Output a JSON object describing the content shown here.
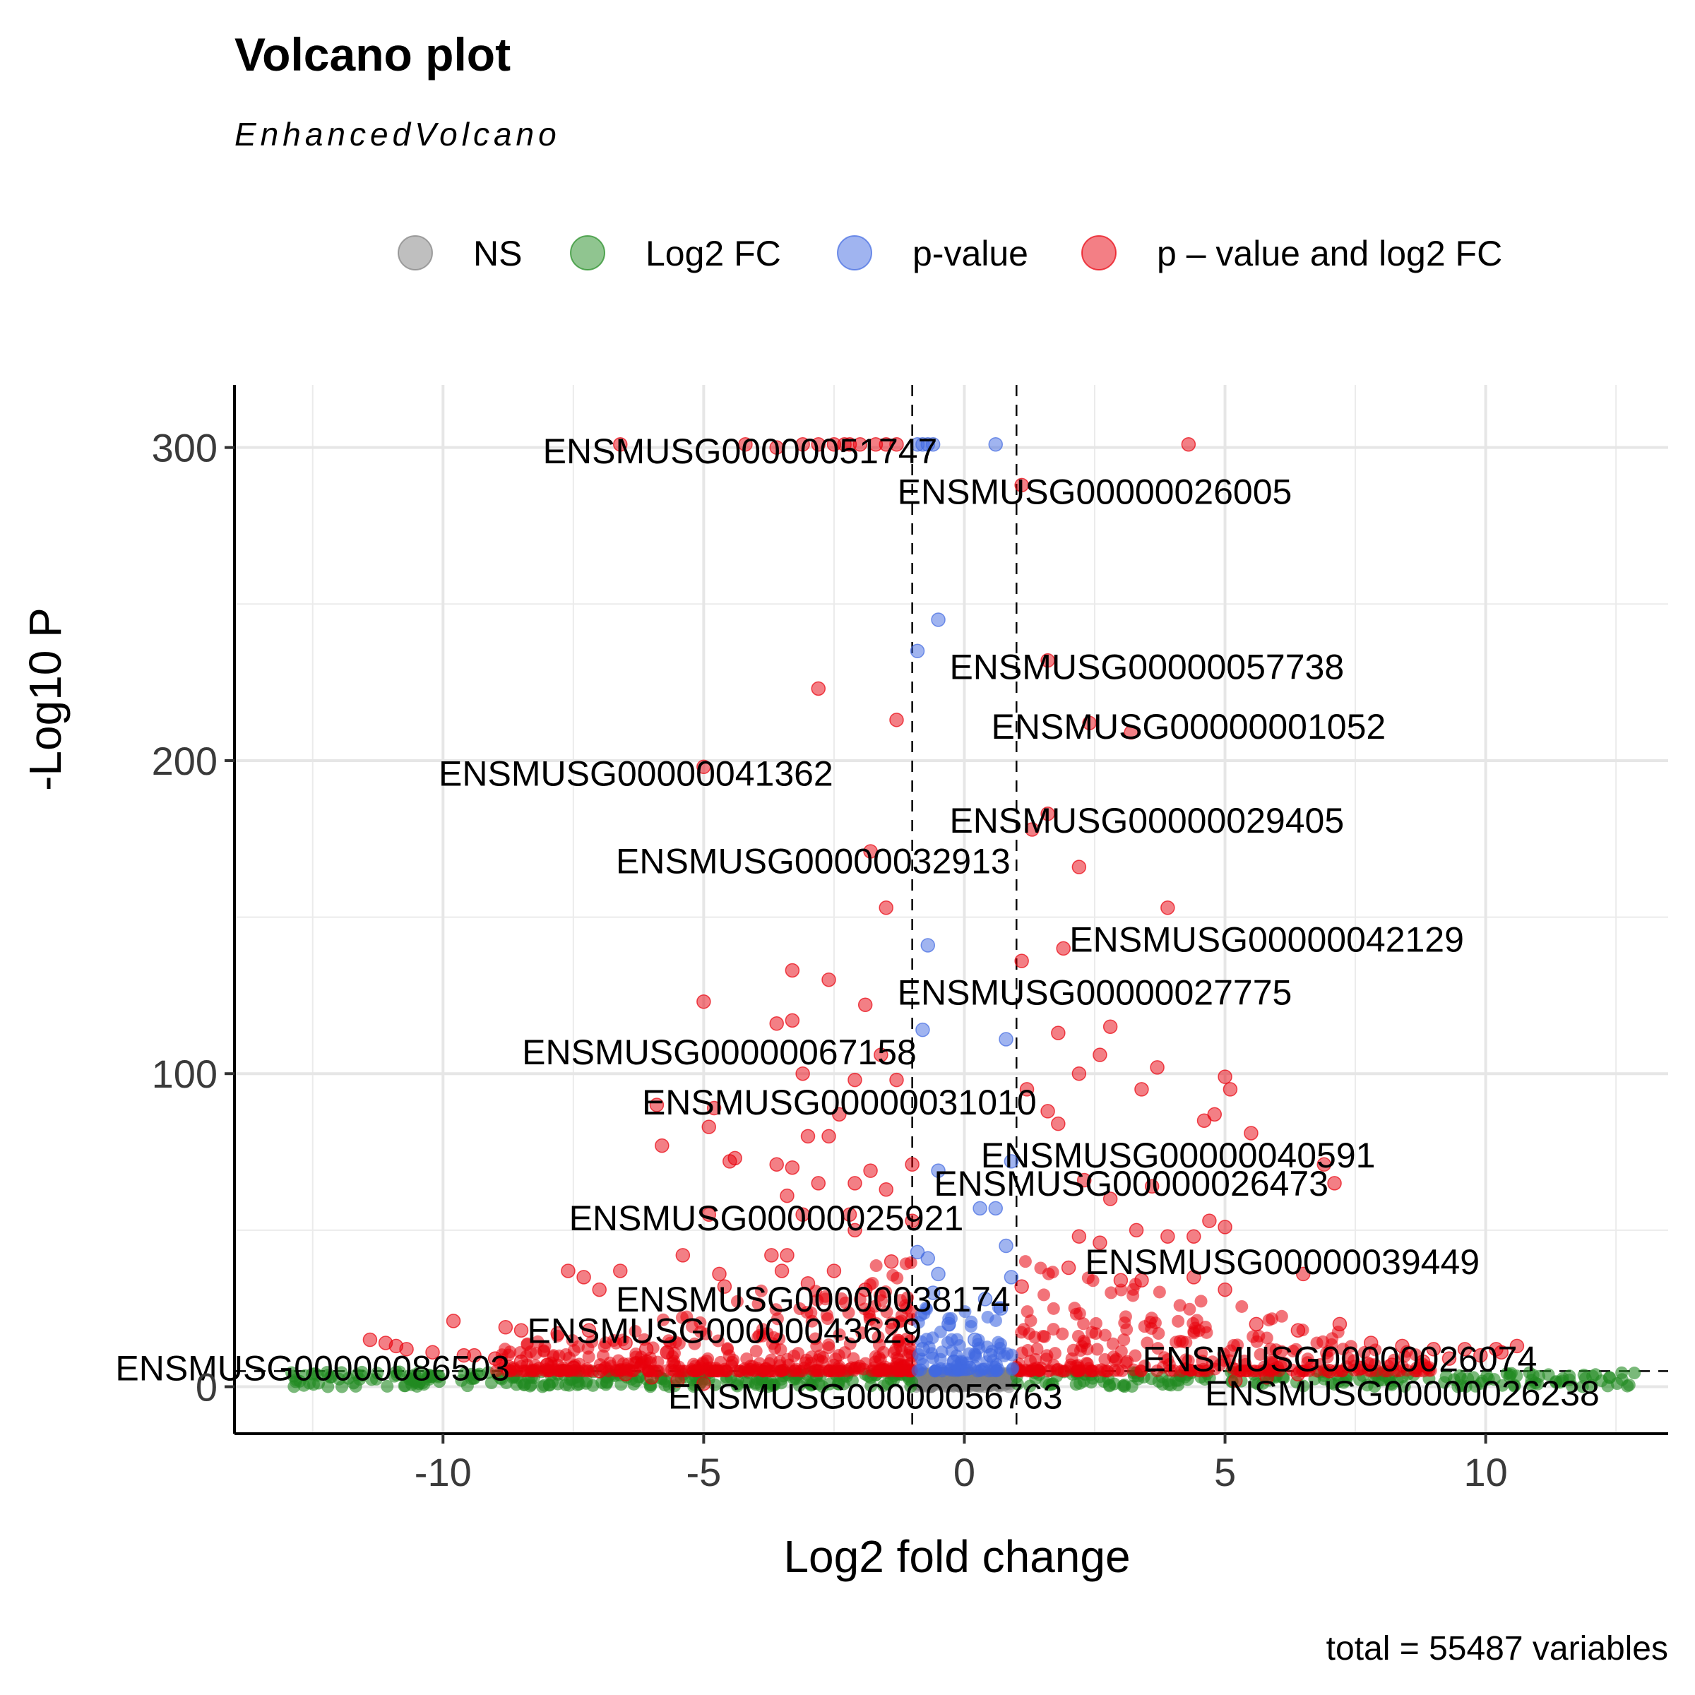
{
  "chart_data": {
    "type": "scatter",
    "title": "Volcano plot",
    "subtitle": "EnhancedVolcano",
    "caption": "total = 55487 variables",
    "xlabel": "Log2 fold change",
    "ylabel": "-Log10 P",
    "xlim": [
      -14,
      13.5
    ],
    "ylim": [
      -15,
      320
    ],
    "x_ticks": [
      -10,
      -5,
      0,
      5,
      10
    ],
    "x_tick_labels": [
      "-10",
      "-5",
      "0",
      "5",
      "10"
    ],
    "y_ticks": [
      0,
      100,
      200,
      300
    ],
    "y_tick_labels": [
      "0",
      "100",
      "200",
      "300"
    ],
    "grid": true,
    "fc_cutoff": 1,
    "p_cutoff_line": 5,
    "legend_position": "top",
    "legend": [
      {
        "key": "NS",
        "label": "NS",
        "color": "#808080"
      },
      {
        "key": "FC",
        "label": "Log2 FC",
        "color": "#228B22"
      },
      {
        "key": "P",
        "label": "p-value",
        "color": "#4169E1"
      },
      {
        "key": "FC_P",
        "label": "p – value and log2 FC",
        "color": "#E8000B"
      }
    ],
    "series": [
      {
        "name": "p – value and log2 FC",
        "color": "#E8000B",
        "points": [
          [
            -6.6,
            301
          ],
          [
            -4.2,
            301
          ],
          [
            -3.6,
            300
          ],
          [
            -3.1,
            301
          ],
          [
            -2.8,
            301
          ],
          [
            -2.5,
            301
          ],
          [
            -2.3,
            301
          ],
          [
            -2.2,
            301
          ],
          [
            -2.0,
            301
          ],
          [
            -1.7,
            301
          ],
          [
            -1.5,
            301
          ],
          [
            -1.3,
            301
          ],
          [
            4.3,
            301
          ],
          [
            1.1,
            288
          ],
          [
            1.6,
            232
          ],
          [
            -2.8,
            223
          ],
          [
            -1.3,
            213
          ],
          [
            2.4,
            212
          ],
          [
            3.2,
            209
          ],
          [
            -5.0,
            198
          ],
          [
            1.6,
            183
          ],
          [
            1.3,
            178
          ],
          [
            -1.8,
            171
          ],
          [
            2.2,
            166
          ],
          [
            3.9,
            153
          ],
          [
            -1.5,
            153
          ],
          [
            1.9,
            140
          ],
          [
            1.1,
            136
          ],
          [
            -3.3,
            133
          ],
          [
            -2.6,
            130
          ],
          [
            -5.0,
            123
          ],
          [
            -1.9,
            122
          ],
          [
            -3.6,
            116
          ],
          [
            -3.3,
            117
          ],
          [
            1.8,
            113
          ],
          [
            2.8,
            115
          ],
          [
            2.6,
            106
          ],
          [
            -1.6,
            106
          ],
          [
            3.7,
            102
          ],
          [
            -3.1,
            100
          ],
          [
            -2.1,
            98
          ],
          [
            5.0,
            99
          ],
          [
            2.2,
            100
          ],
          [
            -1.3,
            98
          ],
          [
            1.2,
            95
          ],
          [
            3.4,
            95
          ],
          [
            5.1,
            95
          ],
          [
            -5.9,
            90
          ],
          [
            -4.8,
            89
          ],
          [
            4.8,
            87
          ],
          [
            1.6,
            88
          ],
          [
            -2.4,
            87
          ],
          [
            -4.9,
            83
          ],
          [
            -2.6,
            80
          ],
          [
            1.8,
            84
          ],
          [
            -5.8,
            77
          ],
          [
            -3.0,
            80
          ],
          [
            5.5,
            81
          ],
          [
            4.6,
            85
          ],
          [
            -4.4,
            73
          ],
          [
            -4.5,
            72
          ],
          [
            -3.6,
            71
          ],
          [
            -1.8,
            69
          ],
          [
            -1.0,
            71
          ],
          [
            -3.3,
            70
          ],
          [
            -2.8,
            65
          ],
          [
            -2.1,
            65
          ],
          [
            2.8,
            60
          ],
          [
            3.6,
            64
          ],
          [
            6.9,
            71
          ],
          [
            7.1,
            65
          ],
          [
            -3.4,
            61
          ],
          [
            -1.5,
            63
          ],
          [
            2.3,
            66
          ],
          [
            -4.9,
            55
          ],
          [
            -3.1,
            55
          ],
          [
            -2.2,
            55
          ],
          [
            -1.0,
            53
          ],
          [
            -2.1,
            50
          ],
          [
            2.2,
            48
          ],
          [
            2.6,
            46
          ],
          [
            3.3,
            50
          ],
          [
            5.0,
            51
          ],
          [
            3.9,
            48
          ],
          [
            4.4,
            48
          ],
          [
            4.7,
            53
          ],
          [
            -5.4,
            42
          ],
          [
            -3.7,
            42
          ],
          [
            -3.4,
            42
          ],
          [
            -3.5,
            37
          ],
          [
            -2.5,
            37
          ],
          [
            -1.4,
            40
          ],
          [
            -7.6,
            37
          ],
          [
            -7.3,
            35
          ],
          [
            -6.6,
            37
          ],
          [
            -7.0,
            31
          ],
          [
            -4.7,
            36
          ],
          [
            -4.6,
            32
          ],
          [
            -3.0,
            33
          ],
          [
            -1.9,
            31
          ],
          [
            1.1,
            32
          ],
          [
            2.0,
            38
          ],
          [
            3.0,
            34
          ],
          [
            3.4,
            34
          ],
          [
            4.4,
            35
          ],
          [
            5.0,
            31
          ],
          [
            6.5,
            36
          ],
          [
            -9.8,
            21
          ],
          [
            -8.8,
            19
          ],
          [
            -8.5,
            18
          ],
          [
            -7.8,
            17
          ],
          [
            -7.2,
            18
          ],
          [
            -6.5,
            14
          ],
          [
            -6.1,
            12
          ],
          [
            -5.7,
            11
          ],
          [
            -11.4,
            15
          ],
          [
            -11.1,
            14
          ],
          [
            -10.9,
            13
          ],
          [
            -10.7,
            12
          ],
          [
            -10.2,
            11
          ],
          [
            -9.6,
            10
          ],
          [
            -9.4,
            10
          ],
          [
            -9.0,
            9
          ],
          [
            -8.5,
            8
          ],
          [
            -8.0,
            7
          ],
          [
            -7.5,
            6
          ],
          [
            -7.0,
            5
          ],
          [
            -6.5,
            4
          ],
          [
            -6.0,
            3
          ],
          [
            -5.5,
            2
          ],
          [
            -5.0,
            1
          ],
          [
            5.6,
            20
          ],
          [
            6.4,
            18
          ],
          [
            7.2,
            20
          ],
          [
            7.8,
            14
          ],
          [
            8.4,
            13
          ],
          [
            9.0,
            12
          ],
          [
            9.6,
            12
          ],
          [
            10.2,
            12
          ],
          [
            10.6,
            13
          ],
          [
            10.3,
            11
          ],
          [
            9.9,
            10
          ],
          [
            9.3,
            9
          ],
          [
            8.8,
            8
          ],
          [
            8.2,
            7
          ],
          [
            7.6,
            6
          ],
          [
            7.0,
            5
          ],
          [
            6.4,
            4
          ],
          [
            5.8,
            3
          ],
          [
            5.2,
            2
          ]
        ]
      },
      {
        "name": "p-value",
        "color": "#4169E1",
        "points": [
          [
            -0.9,
            301
          ],
          [
            -0.8,
            301
          ],
          [
            -0.6,
            301
          ],
          [
            -0.7,
            301
          ],
          [
            0.6,
            301
          ],
          [
            -0.5,
            245
          ],
          [
            -0.9,
            235
          ],
          [
            -0.7,
            141
          ],
          [
            -0.8,
            114
          ],
          [
            0.8,
            111
          ],
          [
            0.9,
            72
          ],
          [
            -0.5,
            69
          ],
          [
            0.3,
            57
          ],
          [
            0.6,
            57
          ],
          [
            0.8,
            45
          ],
          [
            -0.9,
            43
          ],
          [
            -0.7,
            41
          ],
          [
            -0.5,
            36
          ],
          [
            0.9,
            35
          ],
          [
            -0.6,
            30
          ],
          [
            0.4,
            28
          ],
          [
            0.7,
            25
          ],
          [
            -0.3,
            20
          ],
          [
            0.2,
            15
          ],
          [
            -0.8,
            12
          ],
          [
            0.5,
            10
          ],
          [
            -0.2,
            8
          ],
          [
            0.1,
            6
          ]
        ]
      }
    ],
    "labels": [
      {
        "text": "ENSMUSG00000051747",
        "x": -4.3,
        "y": 295
      },
      {
        "text": "ENSMUSG00000026005",
        "x": 2.5,
        "y": 282
      },
      {
        "text": "ENSMUSG00000057738",
        "x": 3.5,
        "y": 226
      },
      {
        "text": "ENSMUSG00000001052",
        "x": 4.3,
        "y": 207
      },
      {
        "text": "ENSMUSG00000041362",
        "x": -6.3,
        "y": 192
      },
      {
        "text": "ENSMUSG00000029405",
        "x": 3.5,
        "y": 177
      },
      {
        "text": "ENSMUSG00000032913",
        "x": -2.9,
        "y": 164
      },
      {
        "text": "ENSMUSG00000042129",
        "x": 5.8,
        "y": 139
      },
      {
        "text": "ENSMUSG00000027775",
        "x": 2.5,
        "y": 122
      },
      {
        "text": "ENSMUSG00000067158",
        "x": -4.7,
        "y": 103
      },
      {
        "text": "ENSMUSG00000031010",
        "x": -2.4,
        "y": 87
      },
      {
        "text": "ENSMUSG00000040591",
        "x": 4.1,
        "y": 70
      },
      {
        "text": "ENSMUSG00000026473",
        "x": 3.2,
        "y": 61
      },
      {
        "text": "ENSMUSG00000025921",
        "x": -3.8,
        "y": 50
      },
      {
        "text": "ENSMUSG00000039449",
        "x": 6.1,
        "y": 36
      },
      {
        "text": "ENSMUSG00000038174",
        "x": -2.9,
        "y": 24
      },
      {
        "text": "ENSMUSG00000043629",
        "x": -4.6,
        "y": 14
      },
      {
        "text": "ENSMUSG00000026074",
        "x": 7.2,
        "y": 5
      },
      {
        "text": "ENSMUSG00000086503",
        "x": -12.5,
        "y": 2
      },
      {
        "text": "ENSMUSG00000056763",
        "x": -1.9,
        "y": -7
      },
      {
        "text": "ENSMUSG00000026238",
        "x": 8.4,
        "y": -6
      }
    ]
  }
}
